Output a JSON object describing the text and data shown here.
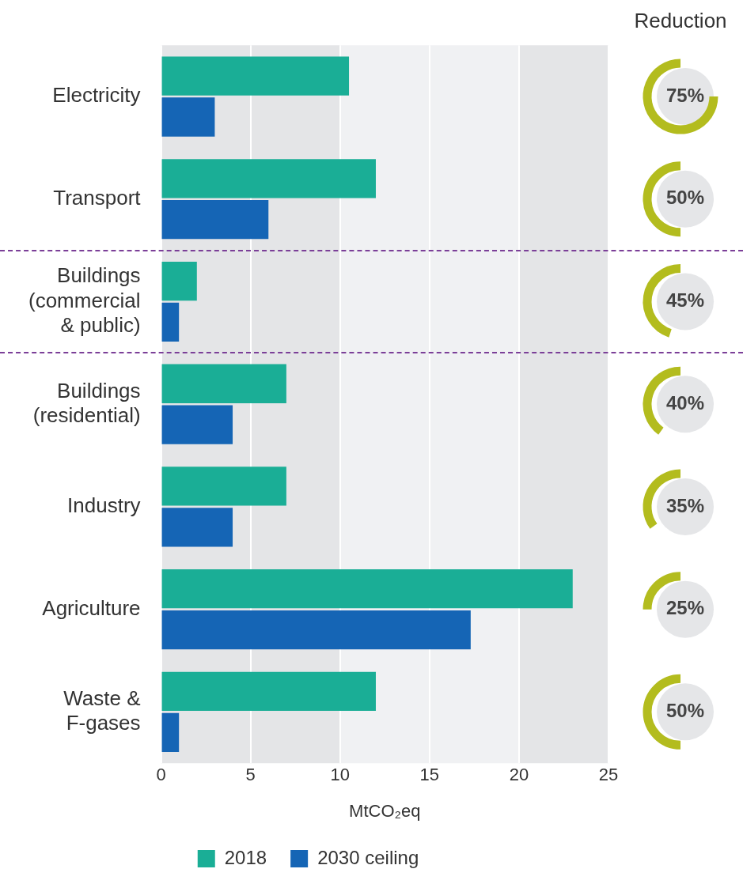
{
  "chart_data": {
    "type": "bar",
    "orientation": "horizontal",
    "xlabel": "MtCO₂eq",
    "categories": [
      "Electricity",
      "Transport",
      "Buildings\n(commercial\n& public)",
      "Buildings\n(residential)",
      "Industry",
      "Agriculture",
      "Waste &\nF-gases"
    ],
    "series": [
      {
        "name": "2018",
        "color": "#1aae96",
        "values": [
          10.5,
          12,
          2,
          7,
          7,
          23,
          12
        ]
      },
      {
        "name": "2030 ceiling",
        "color": "#1565b5",
        "values": [
          3,
          6,
          1,
          4,
          4,
          17.3,
          1
        ]
      }
    ],
    "xlim": [
      0,
      25
    ],
    "xticks": [
      0,
      5,
      10,
      15,
      20,
      25
    ],
    "grid": "x",
    "legend": "bottom",
    "bands": [
      {
        "axis": "x",
        "from": 0,
        "to": 10,
        "color": "#e4e5e7"
      },
      {
        "axis": "x",
        "from": 10,
        "to": 20,
        "color": "#f0f1f3"
      },
      {
        "axis": "x",
        "from": 20,
        "to": 25,
        "color": "#e4e5e7"
      }
    ],
    "annotations": [
      "Reduction",
      "75%",
      "50%",
      "45%",
      "40%",
      "35%",
      "25%",
      "50%"
    ]
  }
}
